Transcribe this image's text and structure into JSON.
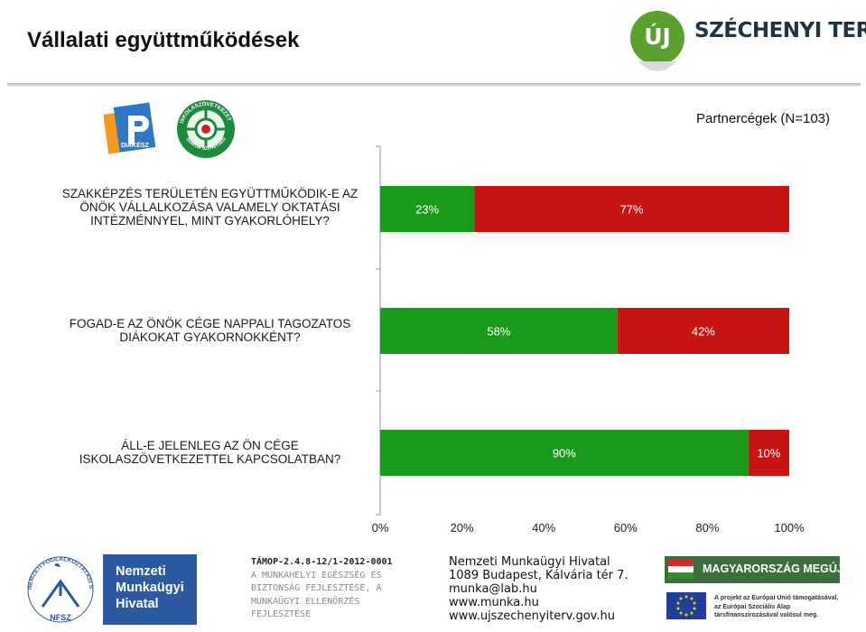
{
  "header": {
    "title": "Vállalati együttműködések",
    "logo_right": {
      "badge": "ÚJ",
      "name": "SZÉCHENYI TERV"
    },
    "logo_left": {
      "brand": "DIÁKÉSZ",
      "seal_top": "ISKOLASZÖVETKEZET",
      "seal_bottom": "DIÁKOK SZÖVETSÉG"
    }
  },
  "subtitle": "Partnercégek (N=103)",
  "chart_data": {
    "type": "bar",
    "orientation": "horizontal",
    "stacked": true,
    "categories": [
      "SZAKKÉPZÉS TERÜLETÉN EGYÜTTMŰKÖDIK-E AZ ÖNÖK VÁLLALKOZÁSA VALAMELY OKTATÁSI INTÉZMÉNNYEL, MINT GYAKORLÓHELY?",
      "FOGAD-E AZ ÖNÖK CÉGE NAPPALI TAGOZATOS DIÁKOKAT GYAKORNOKKÉNT?",
      "ÁLL-E JELENLEG AZ ÖN CÉGE ISKOLASZÖVETKEZETTEL KAPCSOLATBAN?"
    ],
    "series": [
      {
        "values": [
          23,
          58,
          90
        ],
        "labels": [
          "23%",
          "58%",
          "90%"
        ]
      },
      {
        "values": [
          77,
          42,
          10
        ],
        "labels": [
          "77%",
          "42%",
          "10%"
        ]
      }
    ],
    "colors": [
      "#1a9a1a",
      "#c81414"
    ],
    "xticks": [
      "0%",
      "20%",
      "40%",
      "60%",
      "80%",
      "100%"
    ],
    "xlim": [
      0,
      100
    ],
    "grid": false,
    "legend": "none"
  },
  "footer": {
    "nfsz": {
      "name": "Nemzeti Munkaügyi Hivatal",
      "ring": "NEMZETI FOGLALKOZTATÁSI SZOLGÁLAT",
      "abbr": "NFSZ"
    },
    "tamop": [
      "TÁMOP-2.4.8-12/1-2012-0001",
      "A MUNKAHELYI EGÉSZSÉG ÉS",
      "BIZTONSÁG FEJLESZTÉSE, A",
      "MUNKAÜGYI ELLENŐRZÉS",
      "FEJLESZTÉSE"
    ],
    "contact": [
      "Nemzeti Munkaügyi Hivatal",
      "1089 Budapest, Kálvária tér 7.",
      "munka@lab.hu",
      "www.munka.hu",
      "www.ujszechenyiterv.gov.hu"
    ],
    "hu_banner": "MAGYARORSZÁG MEGÚJUL",
    "eu_text": "A projekt az Európai Unió támogatásával, az Európai Szociális Alap társfinanszírozásával valósul meg."
  }
}
